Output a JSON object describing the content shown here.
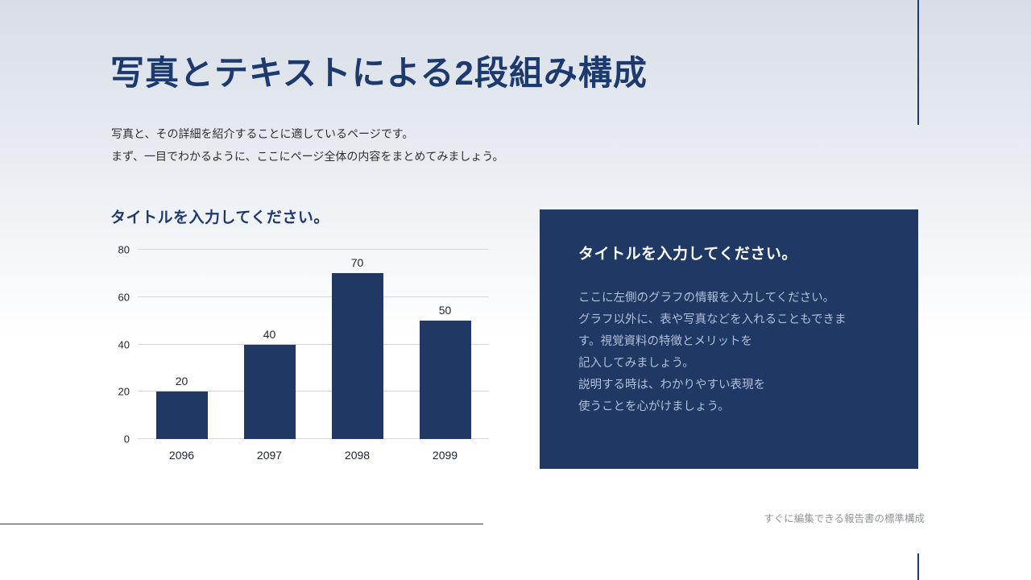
{
  "slide": {
    "title": "写真とテキストによる2段組み構成",
    "subtitle_lines": [
      "写真と、その詳細を紹介することに適しているページです。",
      "まず、一目でわかるように、ここにページ全体の内容をまとめてみましょう。"
    ],
    "footer": "すぐに編集できる報告書の標準構成"
  },
  "panel": {
    "title": "タイトルを入力してください。",
    "body_lines": [
      "ここに左側のグラフの情報を入力してください。",
      "グラフ以外に、表や写真などを入れることもできま",
      "す。視覚資料の特徴とメリットを",
      "記入してみましょう。",
      "説明する時は、わかりやすい表現を",
      "使うことを心がけましょう。"
    ]
  },
  "colors": {
    "navy": "#1f3864",
    "title_text": "#1d3a6e",
    "panel_body_text": "#b4bfd9",
    "gridline": "#d7d7d7",
    "footer_text": "#8d949e"
  },
  "chart_data": {
    "type": "bar",
    "title": "タイトルを入力してください。",
    "categories": [
      "2096",
      "2097",
      "2098",
      "2099"
    ],
    "values": [
      20,
      40,
      70,
      50
    ],
    "ylim": [
      0,
      80
    ],
    "yticks": [
      0,
      20,
      40,
      60,
      80
    ],
    "xlabel": "",
    "ylabel": "",
    "grid": true,
    "bar_color": "#1f3864"
  }
}
